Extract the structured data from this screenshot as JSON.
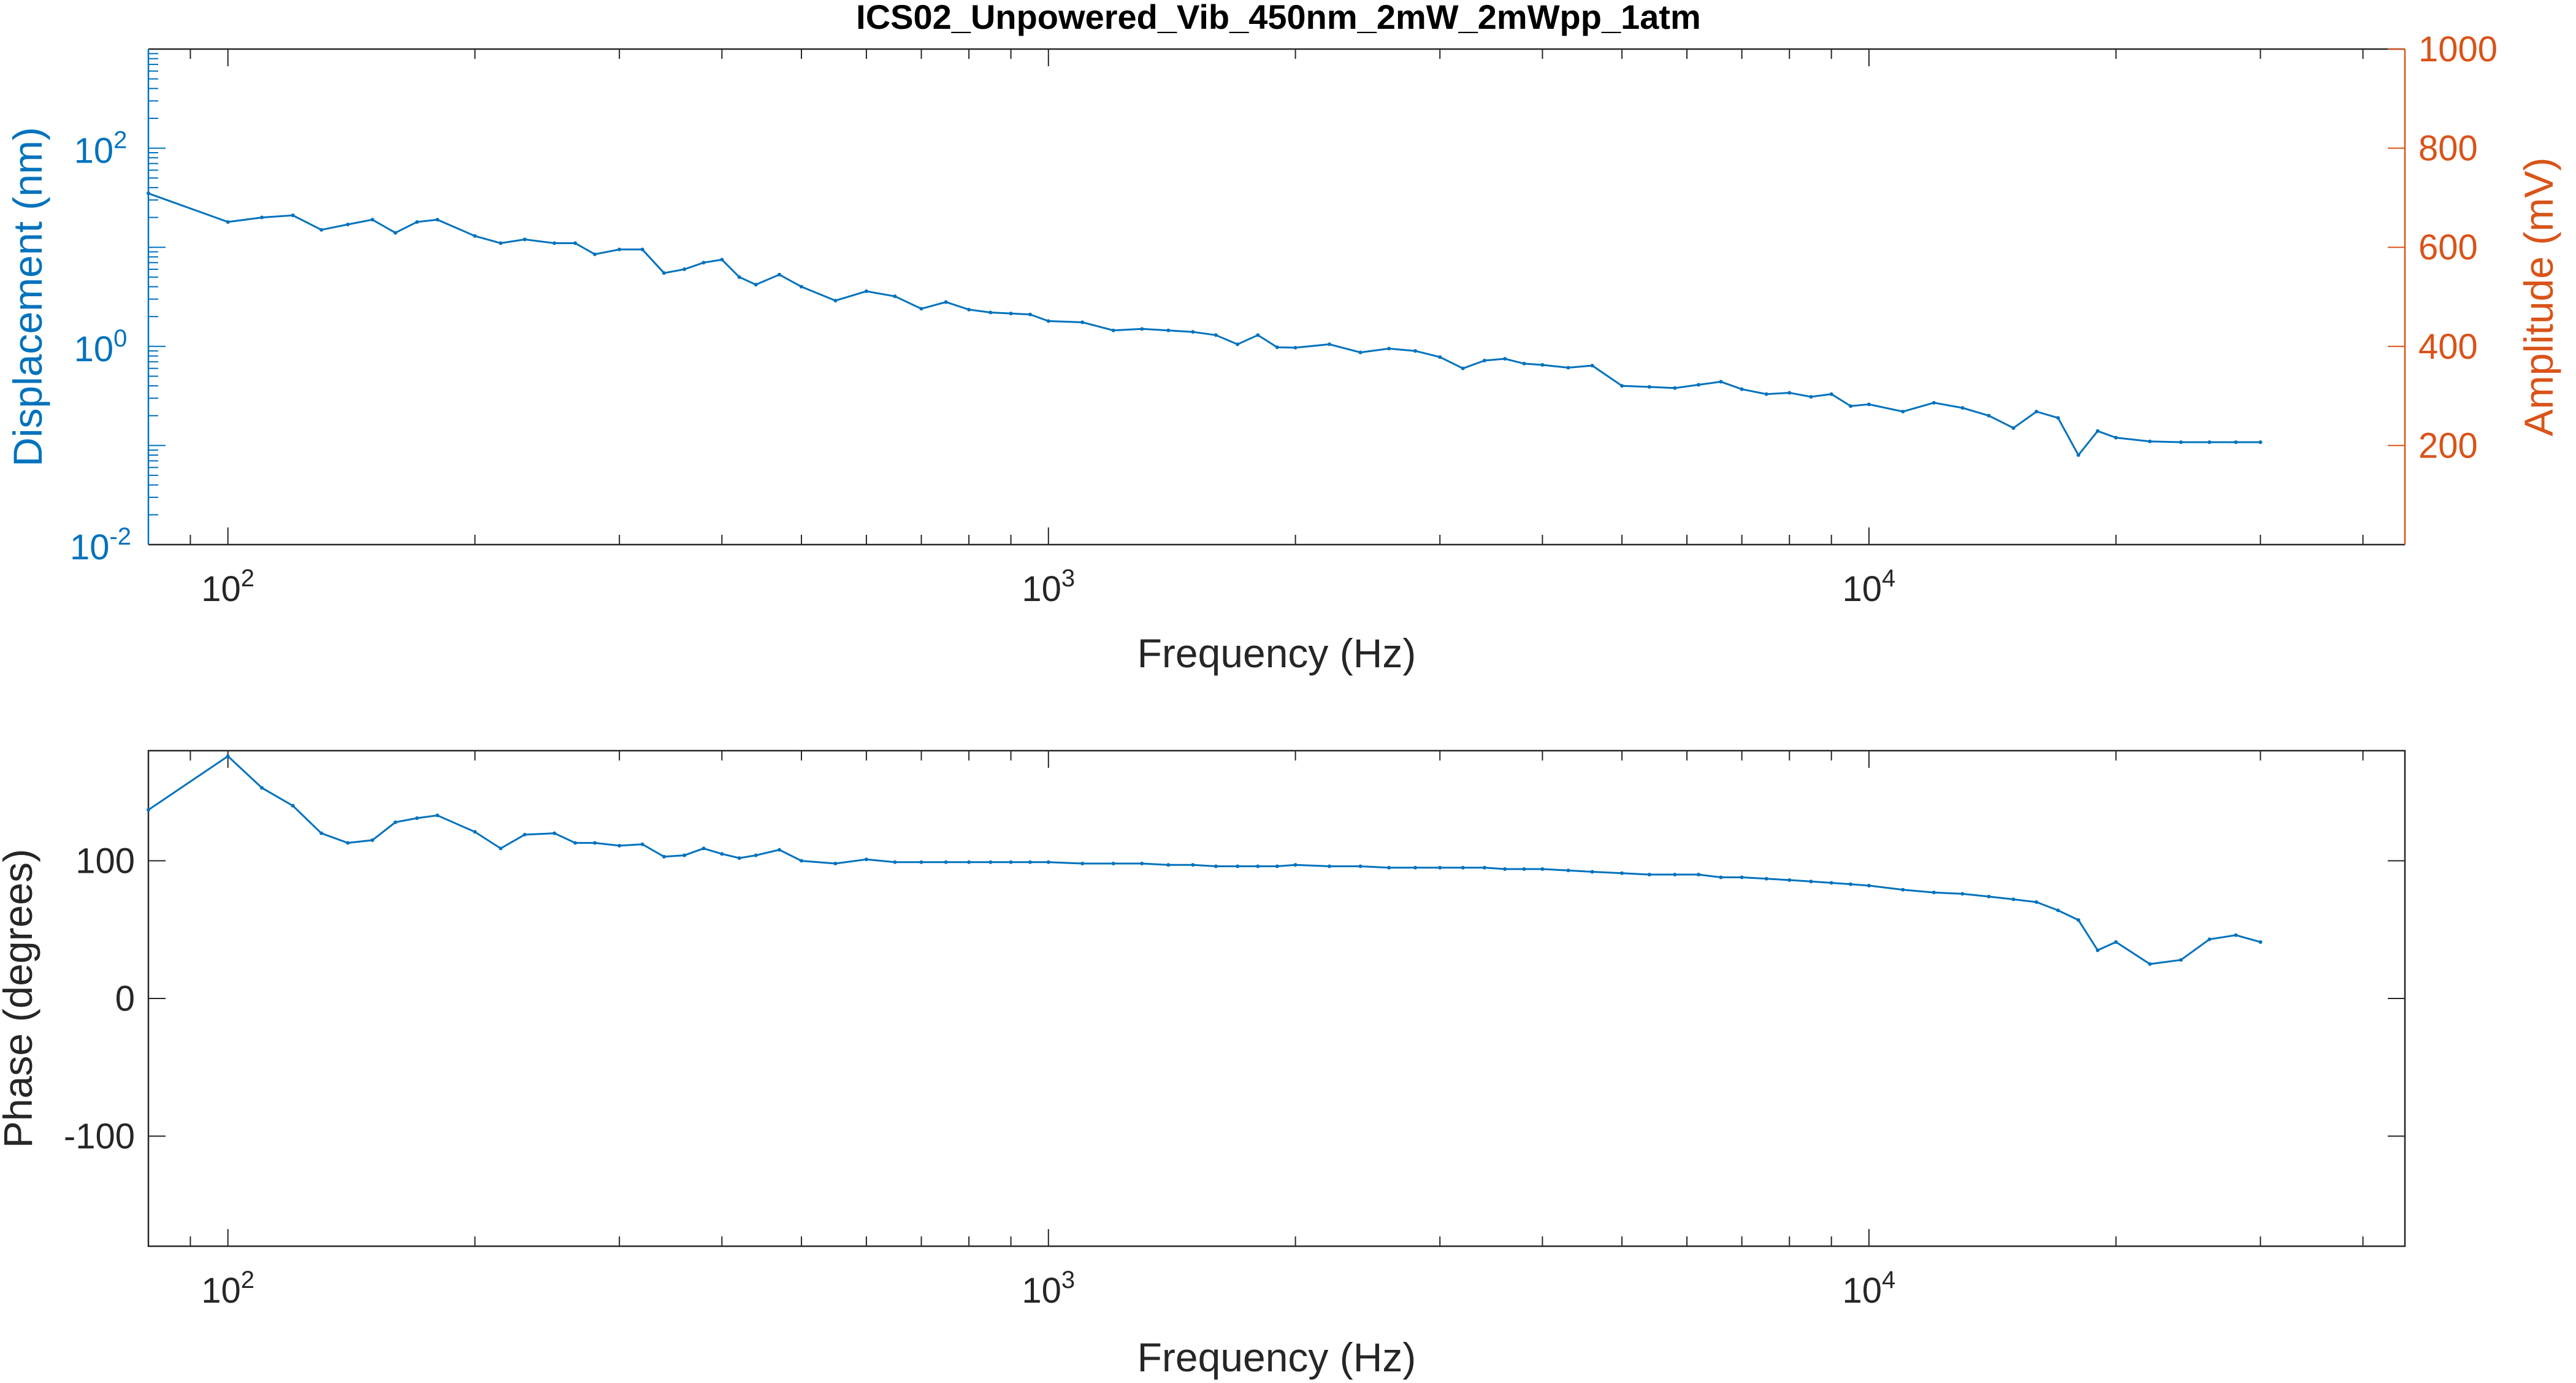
{
  "figure": {
    "title": "ICS02_Unpowered_Vib_450nm_2mW_2mWpp_1atm"
  },
  "colors": {
    "series": "#0072BD",
    "left_axis": "#0072BD",
    "right_axis": "#D95319",
    "axis": "#262626",
    "background": "#FFFFFF"
  },
  "chart_data": [
    {
      "type": "line",
      "scale": {
        "x": "log",
        "y_left": "log",
        "y_right": "linear"
      },
      "xlabel": "Frequency (Hz)",
      "ylabel": "Displacement (nm)",
      "ylabel_right": "Amplitude (mV)",
      "xlim": [
        80,
        45000
      ],
      "ylim": [
        0.01,
        1000
      ],
      "ylim_right": [
        0,
        1000
      ],
      "x_ticks": [
        {
          "base": "10",
          "exp": "2"
        },
        {
          "base": "10",
          "exp": "3"
        },
        {
          "base": "10",
          "exp": "4"
        }
      ],
      "y_ticks": [
        {
          "base": "10",
          "exp": "-2"
        },
        {
          "base": "10",
          "exp": "0"
        },
        {
          "base": "10",
          "exp": "2"
        }
      ],
      "y_ticks_right": [
        "200",
        "400",
        "600",
        "800",
        "1000"
      ],
      "grid": false,
      "x": [
        80,
        100,
        110,
        120,
        130,
        140,
        150,
        160,
        170,
        180,
        200,
        215,
        230,
        250,
        265,
        280,
        300,
        320,
        340,
        360,
        380,
        400,
        420,
        440,
        470,
        500,
        550,
        600,
        650,
        700,
        750,
        800,
        850,
        900,
        950,
        1000,
        1100,
        1200,
        1300,
        1400,
        1500,
        1600,
        1700,
        1800,
        1900,
        2000,
        2200,
        2400,
        2600,
        2800,
        3000,
        3200,
        3400,
        3600,
        3800,
        4000,
        4300,
        4600,
        5000,
        5400,
        5800,
        6200,
        6600,
        7000,
        7500,
        8000,
        8500,
        9000,
        9500,
        10000,
        11000,
        12000,
        13000,
        14000,
        15000,
        16000,
        17000,
        18000,
        19000,
        20000,
        22000,
        24000,
        26000,
        28000,
        30000
      ],
      "series": [
        {
          "values": [
            35,
            18,
            20,
            21,
            15,
            17,
            19,
            14,
            18,
            19,
            13,
            11,
            12,
            11,
            11,
            8.5,
            9.5,
            9.5,
            5.5,
            6,
            7,
            7.5,
            5,
            4.2,
            5.3,
            4,
            2.9,
            3.6,
            3.2,
            2.4,
            2.8,
            2.35,
            2.2,
            2.15,
            2.1,
            1.8,
            1.75,
            1.45,
            1.5,
            1.45,
            1.4,
            1.3,
            1.05,
            1.3,
            0.98,
            0.97,
            1.05,
            0.87,
            0.95,
            0.9,
            0.78,
            0.6,
            0.72,
            0.75,
            0.67,
            0.65,
            0.61,
            0.64,
            0.4,
            0.39,
            0.38,
            0.41,
            0.44,
            0.37,
            0.33,
            0.34,
            0.31,
            0.33,
            0.25,
            0.26,
            0.22,
            0.27,
            0.24,
            0.2,
            0.15,
            0.22,
            0.19,
            0.08,
            0.14,
            0.12,
            0.11,
            0.108,
            0.108,
            0.108,
            0.108
          ]
        }
      ]
    },
    {
      "type": "line",
      "scale": {
        "x": "log",
        "y": "linear"
      },
      "xlabel": "Frequency (Hz)",
      "ylabel": "Phase (degrees)",
      "xlim": [
        80,
        45000
      ],
      "ylim": [
        -180,
        180
      ],
      "x_ticks": [
        {
          "base": "10",
          "exp": "2"
        },
        {
          "base": "10",
          "exp": "3"
        },
        {
          "base": "10",
          "exp": "4"
        }
      ],
      "y_ticks": [
        "-100",
        "0",
        "100"
      ],
      "grid": false,
      "x": [
        80,
        100,
        110,
        120,
        130,
        140,
        150,
        160,
        170,
        180,
        200,
        215,
        230,
        250,
        265,
        280,
        300,
        320,
        340,
        360,
        380,
        400,
        420,
        440,
        470,
        500,
        550,
        600,
        650,
        700,
        750,
        800,
        850,
        900,
        950,
        1000,
        1100,
        1200,
        1300,
        1400,
        1500,
        1600,
        1700,
        1800,
        1900,
        2000,
        2200,
        2400,
        2600,
        2800,
        3000,
        3200,
        3400,
        3600,
        3800,
        4000,
        4300,
        4600,
        5000,
        5400,
        5800,
        6200,
        6600,
        7000,
        7500,
        8000,
        8500,
        9000,
        9500,
        10000,
        11000,
        12000,
        13000,
        14000,
        15000,
        16000,
        17000,
        18000,
        19000,
        20000,
        22000,
        24000,
        26000,
        28000,
        30000
      ],
      "series": [
        {
          "values": [
            137,
            176,
            153,
            140,
            120,
            113,
            115,
            128,
            131,
            133,
            121,
            109,
            119,
            120,
            113,
            113,
            111,
            112,
            103,
            104,
            109,
            105,
            102,
            104,
            108,
            100,
            98,
            101,
            99,
            99,
            99,
            99,
            99,
            99,
            99,
            99,
            98,
            98,
            98,
            97,
            97,
            96,
            96,
            96,
            96,
            97,
            96,
            96,
            95,
            95,
            95,
            95,
            95,
            94,
            94,
            94,
            93,
            92,
            91,
            90,
            90,
            90,
            88,
            88,
            87,
            86,
            85,
            84,
            83,
            82,
            79,
            77,
            76,
            74,
            72,
            70,
            64,
            57,
            35,
            41,
            25,
            28,
            43,
            46,
            41
          ]
        }
      ]
    }
  ]
}
